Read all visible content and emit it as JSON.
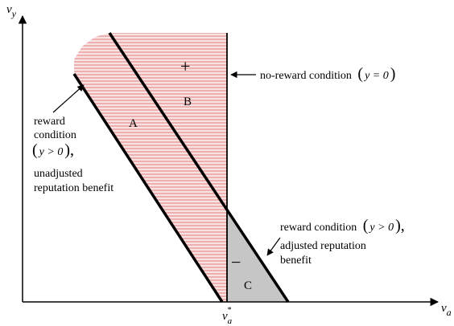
{
  "axes": {
    "y_label_main": "v",
    "y_label_sub": "y",
    "x_label_main": "v",
    "x_label_sub": "a",
    "x_tick_main": "v",
    "x_tick_sub": "a",
    "x_tick_sup": "*"
  },
  "regions": {
    "A": "A",
    "B": "B",
    "C": "C",
    "plus": "+",
    "minus": "−"
  },
  "annotations": {
    "no_reward": {
      "text": "no-reward condition",
      "open": "(",
      "eq": "y = 0",
      "close": ")"
    },
    "reward_unadjusted": {
      "line1": "reward",
      "line2": "condition",
      "open": "(",
      "cond": "y > 0",
      "close": "),",
      "line4": "unadjusted",
      "line5": "reputation benefit"
    },
    "reward_adjusted": {
      "line1": "reward condition",
      "open": "(",
      "cond": "y > 0",
      "close": "),",
      "line2": "adjusted reputation",
      "line3": "benefit"
    }
  },
  "colors": {
    "hatch_pink": "#e79a9a",
    "pink_fill": "#f6d0d0",
    "gray_fill": "#c6c6c6",
    "ink": "#000000"
  }
}
